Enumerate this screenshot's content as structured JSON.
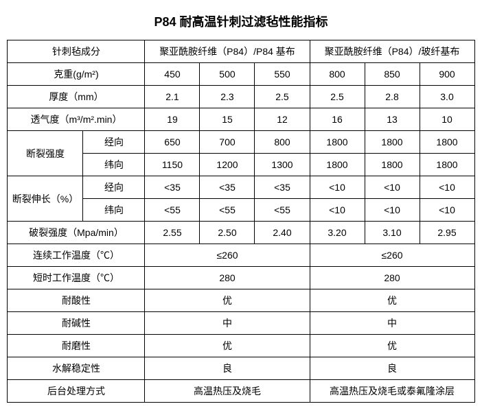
{
  "title": "P84 耐高温针刺过滤毡性能指标",
  "head": {
    "composition": "针刺毡成分",
    "group1": "聚亚酰胺纤维（P84）/P84 基布",
    "group2": "聚亚酰胺纤维（P84）/玻纤基布"
  },
  "rows": {
    "weight_label": "克重(g/m²)",
    "weight": [
      "450",
      "500",
      "550",
      "800",
      "850",
      "900"
    ],
    "thickness_label": "厚度（mm）",
    "thickness": [
      "2.1",
      "2.3",
      "2.5",
      "2.5",
      "2.8",
      "3.0"
    ],
    "air_label": "透气度（m³/m².min）",
    "air": [
      "19",
      "15",
      "12",
      "16",
      "13",
      "10"
    ],
    "break_strength_label": "断裂强度",
    "warp_label": "经向",
    "weft_label": "纬向",
    "break_strength_warp": [
      "650",
      "700",
      "800",
      "1800",
      "1800",
      "1800"
    ],
    "break_strength_weft": [
      "1150",
      "1200",
      "1300",
      "1800",
      "1800",
      "1800"
    ],
    "break_elong_label": "断裂伸长（%）",
    "break_elong_warp": [
      "<35",
      "<35",
      "<35",
      "<10",
      "<10",
      "<10"
    ],
    "break_elong_weft": [
      "<55",
      "<55",
      "<55",
      "<10",
      "<10",
      "<10"
    ],
    "burst_label": "破裂强度（Mpa/min）",
    "burst": [
      "2.55",
      "2.50",
      "2.40",
      "3.20",
      "3.10",
      "2.95"
    ],
    "cont_temp_label": "连续工作温度（℃）",
    "cont_temp": [
      "≤260",
      "≤260"
    ],
    "short_temp_label": "短时工作温度（℃）",
    "short_temp": [
      "280",
      "280"
    ],
    "acid_label": "耐酸性",
    "acid": [
      "优",
      "优"
    ],
    "alkali_label": "耐碱性",
    "alkali": [
      "中",
      "中"
    ],
    "wear_label": "耐磨性",
    "wear": [
      "优",
      "优"
    ],
    "hydro_label": "水解稳定性",
    "hydro": [
      "良",
      "良"
    ],
    "post_label": "后台处理方式",
    "post": [
      "高温热压及烧毛",
      "高温热压及烧毛或泰氟隆涂层"
    ]
  },
  "style": {
    "title_fontsize": 18,
    "cell_fontsize": 14,
    "border_color": "#000000",
    "background_color": "#ffffff",
    "text_color": "#000000"
  }
}
